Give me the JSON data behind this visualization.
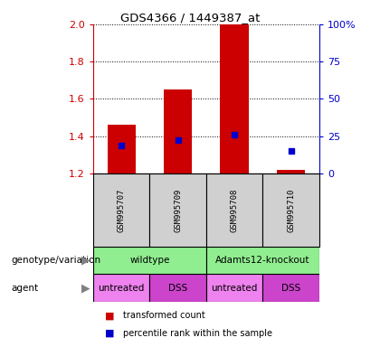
{
  "title": "GDS4366 / 1449387_at",
  "samples": [
    "GSM995707",
    "GSM995709",
    "GSM995708",
    "GSM995710"
  ],
  "bar_values": [
    1.46,
    1.65,
    2.0,
    1.22
  ],
  "bar_bottom": 1.2,
  "percentile_values": [
    1.35,
    1.38,
    1.41,
    1.32
  ],
  "ylim": [
    1.2,
    2.0
  ],
  "y2_ticks": [
    0,
    25,
    50,
    75,
    100
  ],
  "y2_tick_positions": [
    1.2,
    1.4,
    1.6,
    1.8,
    2.0
  ],
  "yticks": [
    1.2,
    1.4,
    1.6,
    1.8,
    2.0
  ],
  "bar_color": "#cc0000",
  "percentile_color": "#0000cc",
  "bar_width": 0.5,
  "agent_colors": [
    "#EE82EE",
    "#CC44CC",
    "#EE82EE",
    "#CC44CC"
  ],
  "agent_labels": [
    "untreated",
    "DSS",
    "untreated",
    "DSS"
  ],
  "genotype_color": "#90EE90",
  "legend_red_label": "transformed count",
  "legend_blue_label": "percentile rank within the sample",
  "tick_color_left": "#cc0000",
  "tick_color_right": "#0000cc",
  "sample_box_color": "#d0d0d0",
  "background_color": "#ffffff"
}
